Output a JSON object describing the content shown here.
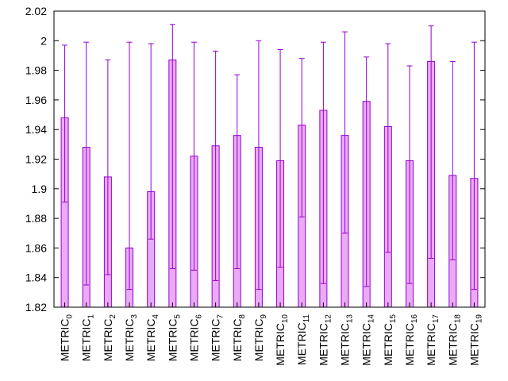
{
  "chart_data": {
    "type": "bar",
    "title": "",
    "xlabel": "",
    "ylabel": "",
    "ylim": [
      1.82,
      2.02
    ],
    "yticks": [
      "1.82",
      "1.84",
      "1.86",
      "1.88",
      "1.9",
      "1.92",
      "1.94",
      "1.96",
      "1.98",
      "2",
      "2.02"
    ],
    "grid": false,
    "legend": "none",
    "bar_fill_color": "#ebaaf5",
    "bar_edge_color": "#9400d3",
    "errorbar_color": "#9400d3",
    "categories": [
      {
        "base": "METRIC",
        "sub": "0"
      },
      {
        "base": "METRIC",
        "sub": "1"
      },
      {
        "base": "METRIC",
        "sub": "2"
      },
      {
        "base": "METRIC",
        "sub": "3"
      },
      {
        "base": "METRIC",
        "sub": "4"
      },
      {
        "base": "METRIC",
        "sub": "5"
      },
      {
        "base": "METRIC",
        "sub": "6"
      },
      {
        "base": "METRIC",
        "sub": "7"
      },
      {
        "base": "METRIC",
        "sub": "8"
      },
      {
        "base": "METRIC",
        "sub": "9"
      },
      {
        "base": "METRIC",
        "sub": "10"
      },
      {
        "base": "METRIC",
        "sub": "11"
      },
      {
        "base": "METRIC",
        "sub": "12"
      },
      {
        "base": "METRIC",
        "sub": "13"
      },
      {
        "base": "METRIC",
        "sub": "14"
      },
      {
        "base": "METRIC",
        "sub": "15"
      },
      {
        "base": "METRIC",
        "sub": "16"
      },
      {
        "base": "METRIC",
        "sub": "17"
      },
      {
        "base": "METRIC",
        "sub": "18"
      },
      {
        "base": "METRIC",
        "sub": "19"
      }
    ],
    "values": [
      1.948,
      1.928,
      1.908,
      1.86,
      1.898,
      1.987,
      1.922,
      1.929,
      1.936,
      1.928,
      1.919,
      1.943,
      1.953,
      1.936,
      1.959,
      1.942,
      1.919,
      1.986,
      1.909,
      1.907
    ],
    "error_lower": [
      1.891,
      1.835,
      1.842,
      1.832,
      1.866,
      1.846,
      1.845,
      1.838,
      1.846,
      1.832,
      1.847,
      1.881,
      1.836,
      1.87,
      1.834,
      1.857,
      1.836,
      1.853,
      1.852,
      1.832
    ],
    "error_upper": [
      1.997,
      1.999,
      1.987,
      1.999,
      1.998,
      2.011,
      1.999,
      1.993,
      1.977,
      2.0,
      1.994,
      1.988,
      1.999,
      2.006,
      1.989,
      1.998,
      1.983,
      2.01,
      1.986,
      1.999
    ]
  }
}
